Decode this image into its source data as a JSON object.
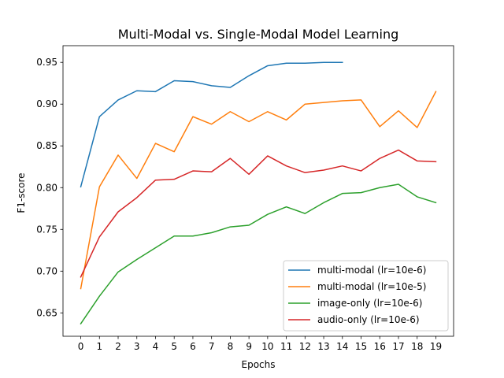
{
  "chart_data": {
    "type": "line",
    "title": "Multi-Modal vs. Single-Modal Model Learning",
    "xlabel": "Epochs",
    "ylabel": "F1-score",
    "xlim": [
      -0.95,
      19.95
    ],
    "ylim": [
      0.622,
      0.97
    ],
    "xticks": [
      0,
      1,
      2,
      3,
      4,
      5,
      6,
      7,
      8,
      9,
      10,
      11,
      12,
      13,
      14,
      15,
      16,
      17,
      18,
      19
    ],
    "yticks": [
      0.65,
      0.7,
      0.75,
      0.8,
      0.85,
      0.9,
      0.95
    ],
    "ytick_labels": [
      "0.65",
      "0.70",
      "0.75",
      "0.80",
      "0.85",
      "0.90",
      "0.95"
    ],
    "grid": false,
    "legend_position": "lower-right",
    "series": [
      {
        "name": "multi-modal (lr=10e-6)",
        "color": "#1f77b4",
        "x": [
          0,
          1,
          2,
          3,
          4,
          5,
          6,
          7,
          8,
          9,
          10,
          11,
          12,
          13,
          14
        ],
        "y": [
          0.801,
          0.885,
          0.905,
          0.916,
          0.915,
          0.928,
          0.927,
          0.922,
          0.92,
          0.934,
          0.946,
          0.949,
          0.949,
          0.95,
          0.95
        ]
      },
      {
        "name": "multi-modal (lr=10e-5)",
        "color": "#ff7f0e",
        "x": [
          0,
          1,
          2,
          3,
          4,
          5,
          6,
          7,
          8,
          9,
          10,
          11,
          12,
          13,
          14,
          15,
          16,
          17,
          18,
          19
        ],
        "y": [
          0.679,
          0.801,
          0.839,
          0.811,
          0.853,
          0.843,
          0.885,
          0.876,
          0.891,
          0.879,
          0.891,
          0.881,
          0.9,
          0.902,
          0.904,
          0.905,
          0.873,
          0.892,
          0.872,
          0.915
        ]
      },
      {
        "name": "image-only (lr=10e-6)",
        "color": "#2ca02c",
        "x": [
          0,
          1,
          2,
          3,
          4,
          5,
          6,
          7,
          8,
          9,
          10,
          11,
          12,
          13,
          14,
          15,
          16,
          17,
          18,
          19
        ],
        "y": [
          0.637,
          0.67,
          0.699,
          0.714,
          0.728,
          0.742,
          0.742,
          0.746,
          0.753,
          0.755,
          0.768,
          0.777,
          0.769,
          0.782,
          0.793,
          0.794,
          0.8,
          0.804,
          0.789,
          0.782
        ]
      },
      {
        "name": "audio-only (lr=10e-6)",
        "color": "#d62728",
        "x": [
          0,
          1,
          2,
          3,
          4,
          5,
          6,
          7,
          8,
          9,
          10,
          11,
          12,
          13,
          14,
          15,
          16,
          17,
          18,
          19
        ],
        "y": [
          0.693,
          0.741,
          0.771,
          0.788,
          0.809,
          0.81,
          0.82,
          0.819,
          0.835,
          0.816,
          0.838,
          0.826,
          0.818,
          0.821,
          0.826,
          0.82,
          0.835,
          0.845,
          0.832,
          0.831
        ]
      }
    ]
  }
}
